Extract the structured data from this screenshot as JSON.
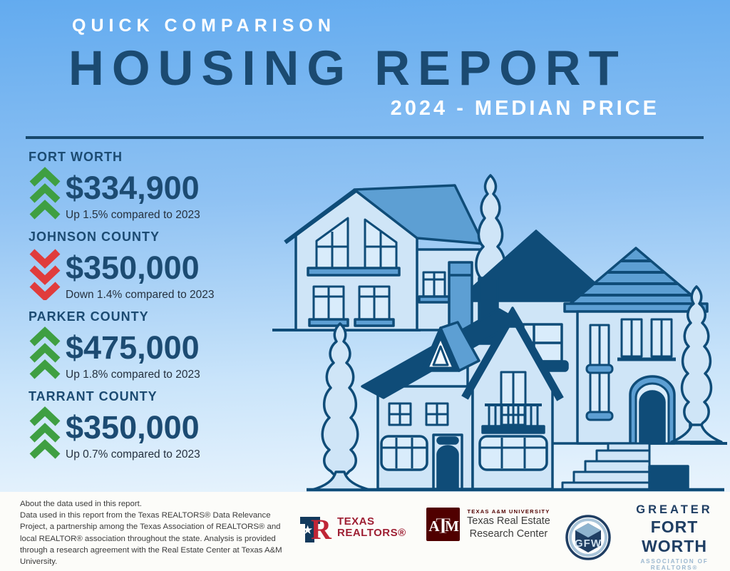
{
  "header": {
    "kicker": "QUICK COMPARISON",
    "title": "HOUSING REPORT",
    "subtitle": "2024 - MEDIAN PRICE"
  },
  "stats": [
    {
      "name": "FORT WORTH",
      "price": "$334,900",
      "caption": "Up 1.5% compared to  2023",
      "direction": "up"
    },
    {
      "name": "JOHNSON COUNTY",
      "price": "$350,000",
      "caption": "Down 1.4% compared to 2023",
      "direction": "down"
    },
    {
      "name": "PARKER COUNTY",
      "price": "$475,000",
      "caption": "Up 1.8% compared to 2023",
      "direction": "up"
    },
    {
      "name": "TARRANT COUNTY",
      "price": "$350,000",
      "caption": "Up 0.7% compared to 2023",
      "direction": "up"
    }
  ],
  "about": {
    "heading": "About the data used in this report.",
    "body": "Data used in this report from the Texas REALTORS® Data Relevance Project, a partnership among the Texas Association of REALTORS® and local REALTOR® association throughout the state. Analysis is provided through a research agreement with the Real Estate Center at Texas A&M University."
  },
  "logos": {
    "texas_realtors": {
      "line1": "TEXAS",
      "line2": "REALTORS®",
      "monogram_r": "R",
      "star": "★"
    },
    "tamu": {
      "university": "TEXAS A&M UNIVERSITY",
      "line1": "Texas Real Estate",
      "line2": "Research Center",
      "mono_a": "A",
      "mono_t": "T",
      "mono_m": "M"
    },
    "gfw": {
      "line1": "GREATER",
      "line2": "FORT WORTH",
      "line3": "ASSOCIATION OF REALTORS®",
      "monogram": "GFW"
    }
  },
  "colors": {
    "navy": "#1c4b72",
    "arrow_up": "#3f9f42",
    "arrow_down": "#e03c3c",
    "sky_top": "#63abef",
    "sky_bottom": "#e9f4fd",
    "illustration_outline": "#0f4c78",
    "illustration_mid_blue": "#5d9fd3",
    "illustration_wall": "#cfe5f7",
    "realtor_red": "#9e1f33",
    "tamu_maroon": "#500000"
  },
  "chart_data": {
    "type": "table",
    "title": "Quick Comparison Housing Report — 2024 Median Price",
    "categories": [
      "Fort Worth",
      "Johnson County",
      "Parker County",
      "Tarrant County"
    ],
    "values": [
      334900,
      350000,
      475000,
      350000
    ],
    "yoy_change_pct": [
      1.5,
      -1.4,
      1.8,
      0.7
    ],
    "yoy_direction": [
      "up",
      "down",
      "up",
      "up"
    ],
    "comparison_year": 2023
  }
}
